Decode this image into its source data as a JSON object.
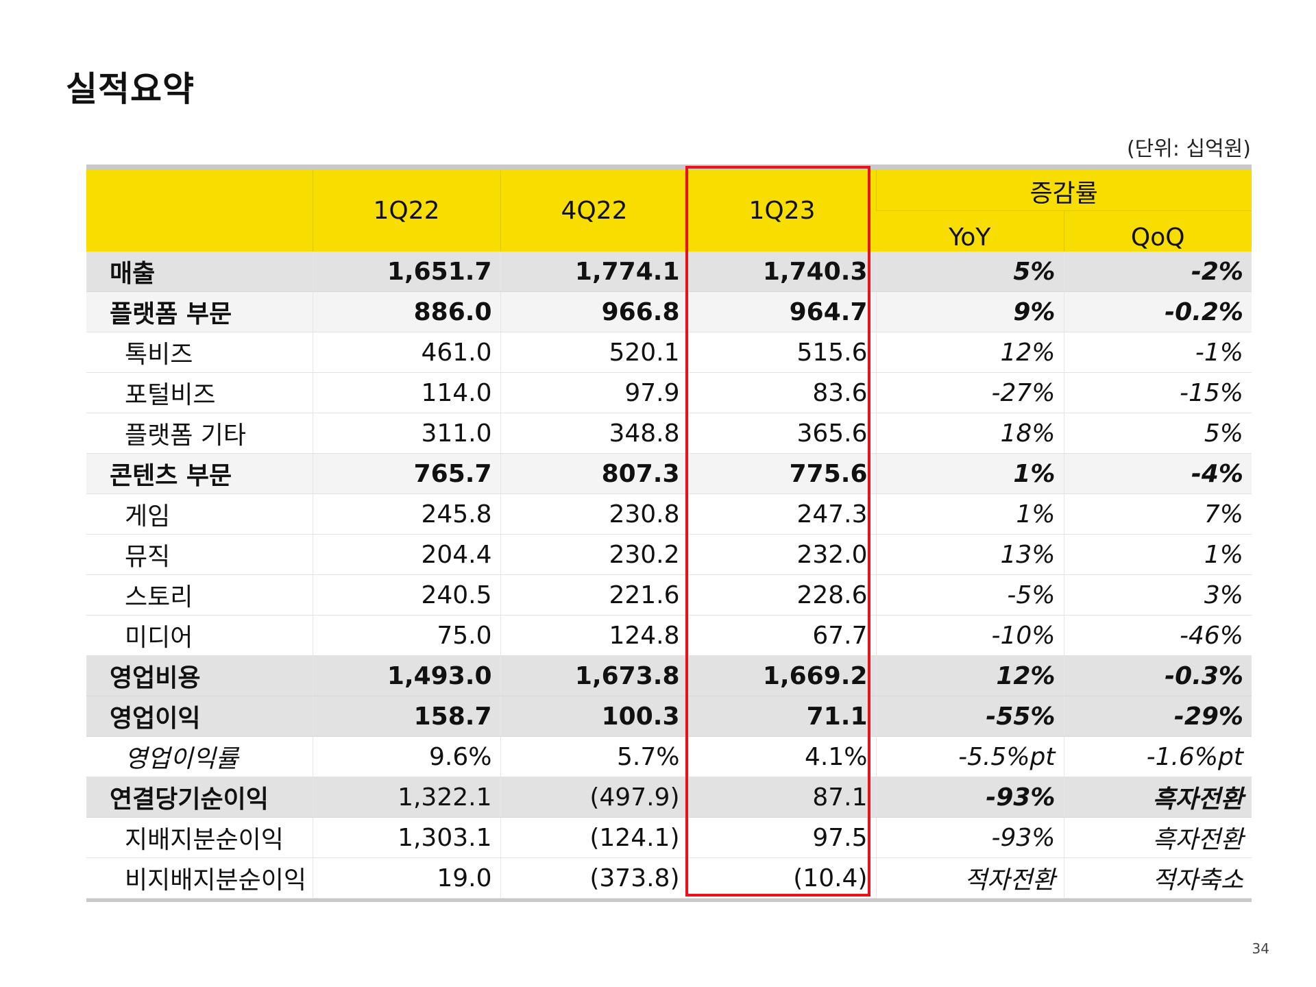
{
  "title": "실적요약",
  "unit_note": "(단위: 십억원)",
  "page_number": "34",
  "highlight_color": "#e8121a",
  "header_color": "#f8de00",
  "table": {
    "columns": [
      "1Q22",
      "4Q22",
      "1Q23"
    ],
    "change_group": "증감률",
    "change_columns": [
      "YoY",
      "QoQ"
    ],
    "rows": [
      {
        "label": "매출",
        "cells": [
          "1,651.7",
          "1,774.1",
          "1,740.3",
          "5%",
          "-2%"
        ]
      },
      {
        "label": "플랫폼 부문",
        "cells": [
          "886.0",
          "966.8",
          "964.7",
          "9%",
          "-0.2%"
        ]
      },
      {
        "label": "톡비즈",
        "cells": [
          "461.0",
          "520.1",
          "515.6",
          "12%",
          "-1%"
        ]
      },
      {
        "label": "포털비즈",
        "cells": [
          "114.0",
          "97.9",
          "83.6",
          "-27%",
          "-15%"
        ]
      },
      {
        "label": "플랫폼 기타",
        "cells": [
          "311.0",
          "348.8",
          "365.6",
          "18%",
          "5%"
        ]
      },
      {
        "label": "콘텐츠 부문",
        "cells": [
          "765.7",
          "807.3",
          "775.6",
          "1%",
          "-4%"
        ]
      },
      {
        "label": "게임",
        "cells": [
          "245.8",
          "230.8",
          "247.3",
          "1%",
          "7%"
        ]
      },
      {
        "label": "뮤직",
        "cells": [
          "204.4",
          "230.2",
          "232.0",
          "13%",
          "1%"
        ]
      },
      {
        "label": "스토리",
        "cells": [
          "240.5",
          "221.6",
          "228.6",
          "-5%",
          "3%"
        ]
      },
      {
        "label": "미디어",
        "cells": [
          "75.0",
          "124.8",
          "67.7",
          "-10%",
          "-46%"
        ]
      },
      {
        "label": "영업비용",
        "cells": [
          "1,493.0",
          "1,673.8",
          "1,669.2",
          "12%",
          "-0.3%"
        ]
      },
      {
        "label": "영업이익",
        "cells": [
          "158.7",
          "100.3",
          "71.1",
          "-55%",
          "-29%"
        ]
      },
      {
        "label": "영업이익률",
        "cells": [
          "9.6%",
          "5.7%",
          "4.1%",
          "-5.5%pt",
          "-1.6%pt"
        ]
      },
      {
        "label": "연결당기순이익",
        "cells": [
          "1,322.1",
          "(497.9)",
          "87.1",
          "-93%",
          "흑자전환"
        ]
      },
      {
        "label": "지배지분순이익",
        "cells": [
          "1,303.1",
          "(124.1)",
          "97.5",
          "-93%",
          "흑자전환"
        ]
      },
      {
        "label": "비지배지분순이익",
        "cells": [
          "19.0",
          "(373.8)",
          "(10.4)",
          "적자전환",
          "적자축소"
        ]
      }
    ]
  }
}
